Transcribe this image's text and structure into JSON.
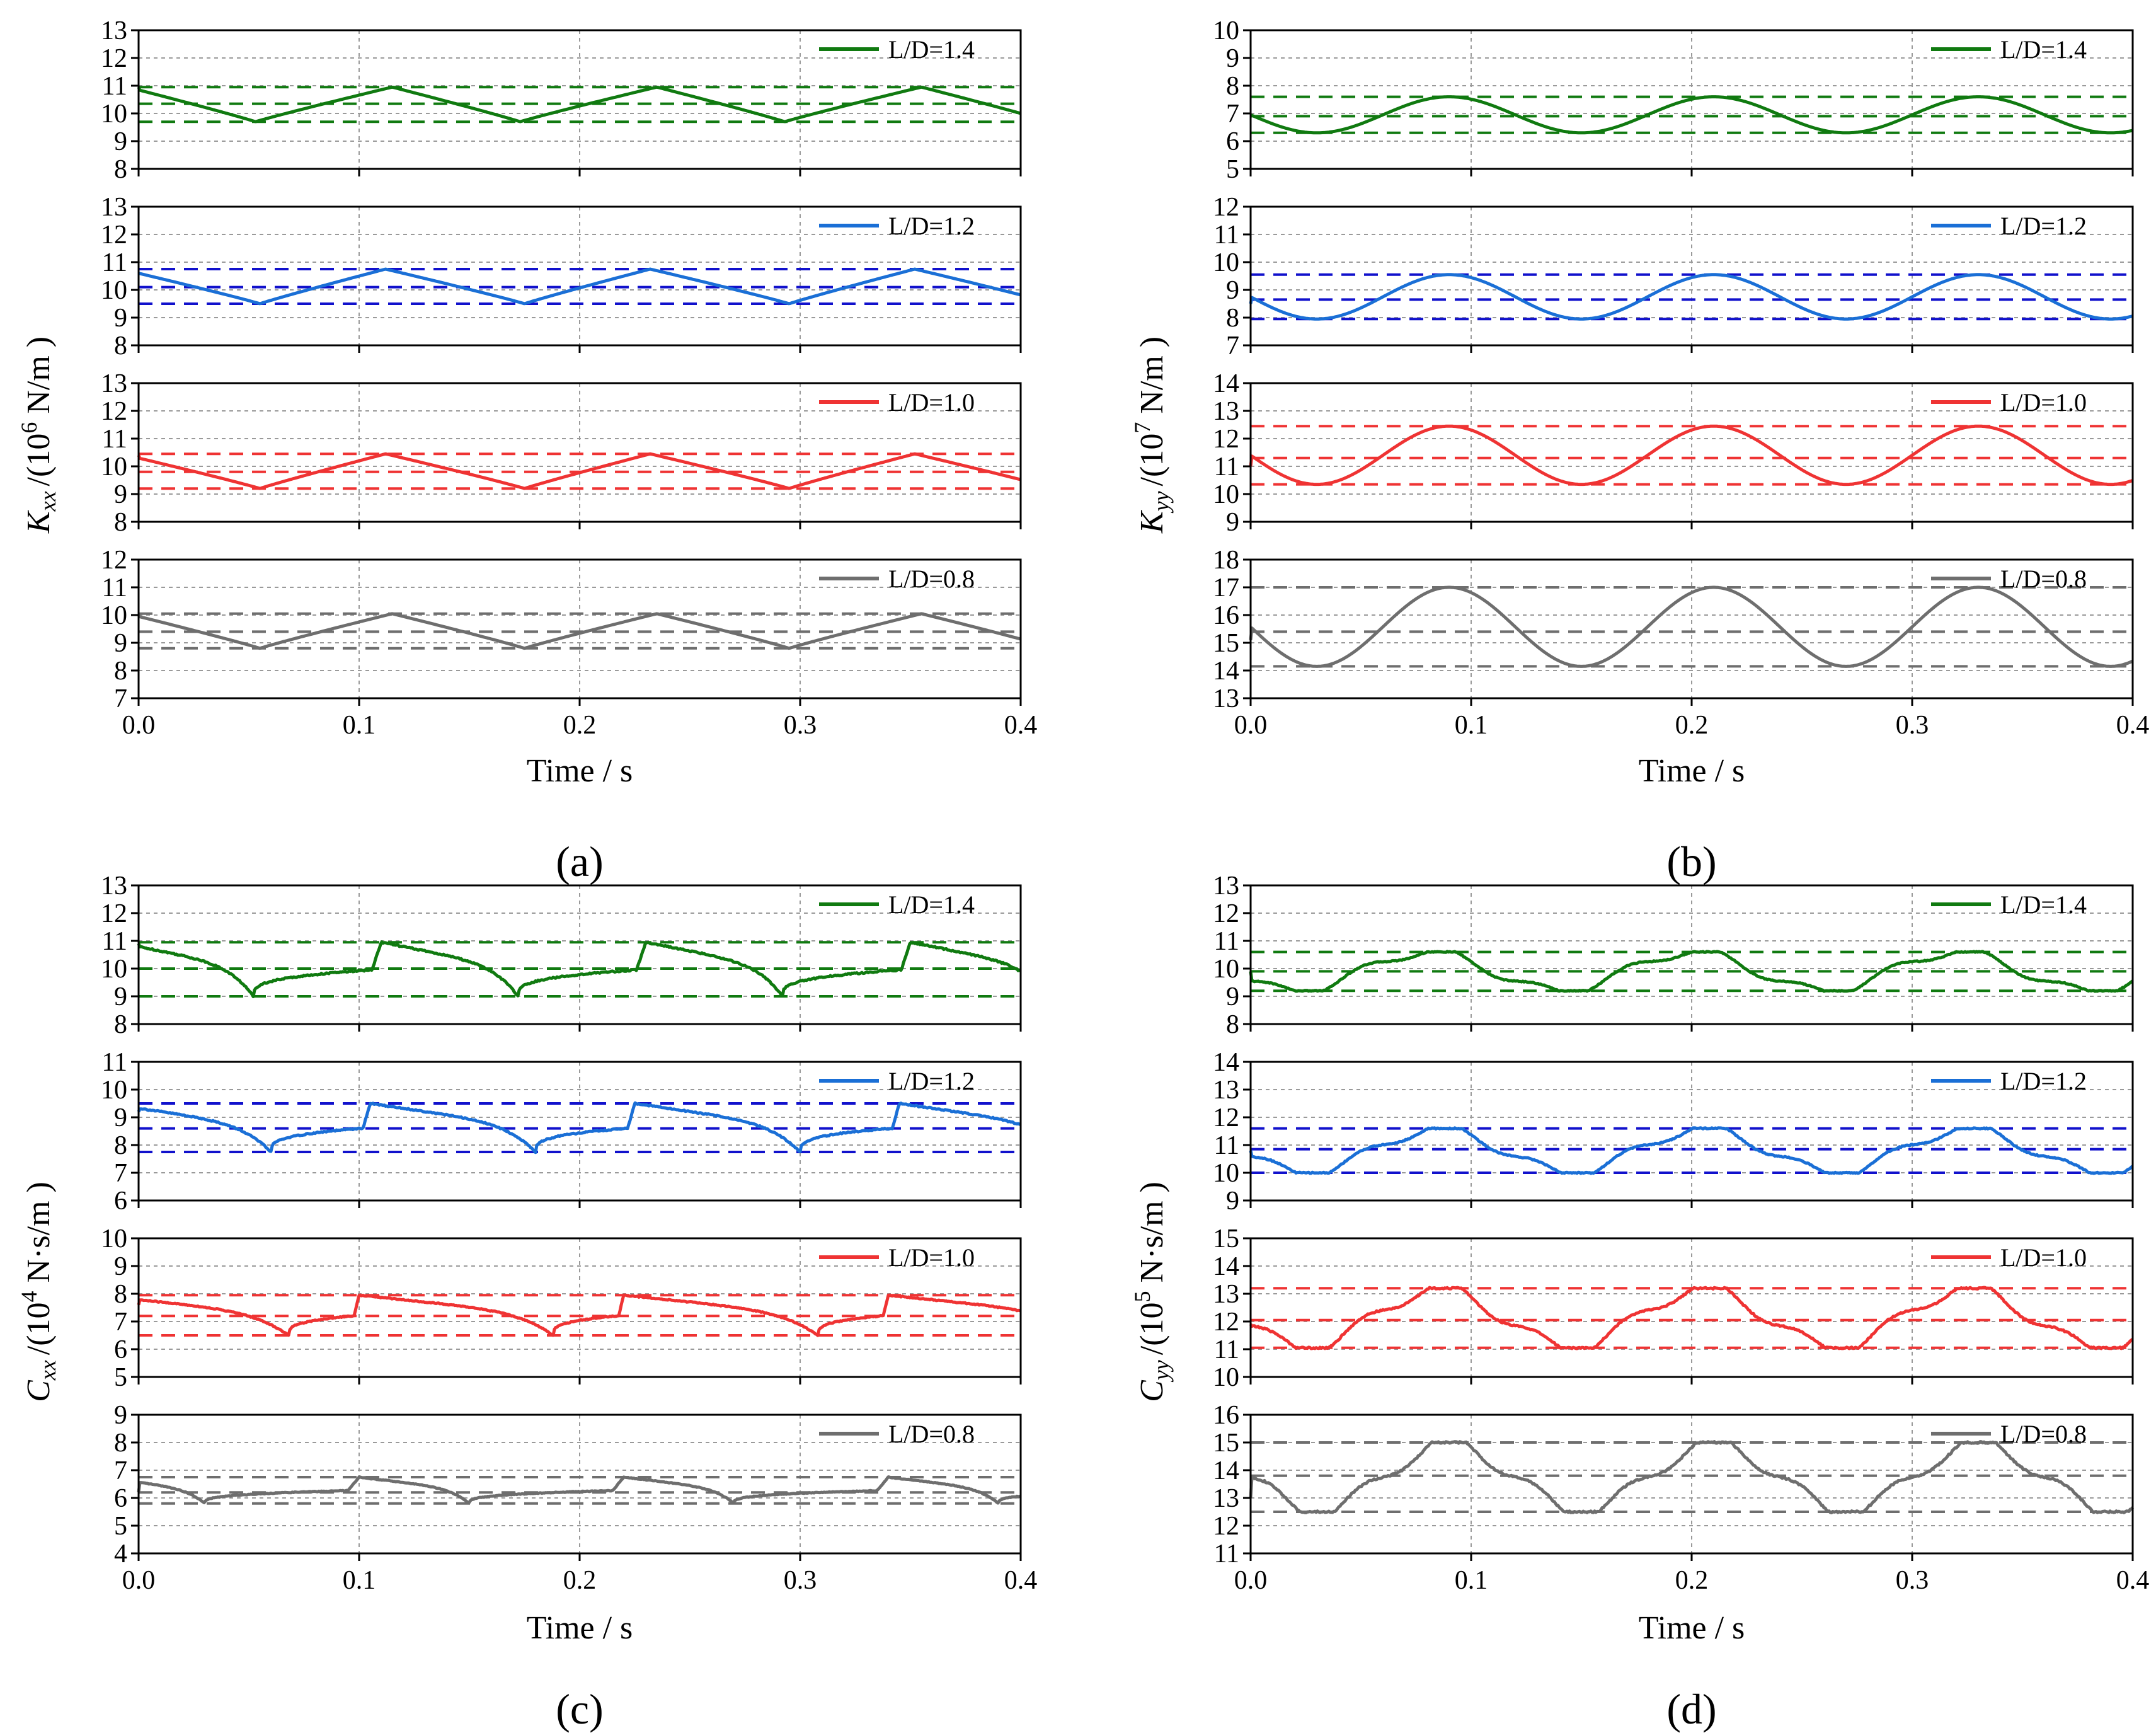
{
  "colors": {
    "green": "#107a10",
    "blue": "#1a6fd6",
    "red": "#ef3333",
    "gray": "#6e6e6e",
    "blue_dash": "#1111cc"
  },
  "chart_data": [
    {
      "type": "line",
      "panel_label": "(a)",
      "xlabel": "Time / s",
      "ylabel": {
        "main": "K",
        "sub": "xx",
        "unit_pre": "/(10",
        "exp": "6",
        "unit_post": " N/m )"
      },
      "xlim": [
        0,
        0.4
      ],
      "xticks": [
        "0.0",
        "0.1",
        "0.2",
        "0.3",
        "0.4"
      ],
      "grid": true,
      "subplots": [
        {
          "legend": "L/D=1.4",
          "color": "green",
          "ylim": [
            8,
            13
          ],
          "yticks": [
            "8",
            "9",
            "10",
            "11",
            "12",
            "13"
          ],
          "period": 0.12,
          "shape": "triangle",
          "min": 9.7,
          "max": 10.95,
          "mean": 10.35,
          "min_t": 0.053,
          "max_t": 0.115,
          "start": 10.95
        },
        {
          "legend": "L/D=1.2",
          "color": "blue",
          "ylim": [
            8,
            13
          ],
          "yticks": [
            "8",
            "9",
            "10",
            "11",
            "12",
            "13"
          ],
          "period": 0.12,
          "shape": "triangle",
          "min": 9.5,
          "max": 10.75,
          "mean": 10.1,
          "min_t": 0.055,
          "max_t": 0.112,
          "start": 10.6,
          "dash_color": "blue_dash"
        },
        {
          "legend": "L/D=1.0",
          "color": "red",
          "ylim": [
            8,
            13
          ],
          "yticks": [
            "8",
            "9",
            "10",
            "11",
            "12",
            "13"
          ],
          "period": 0.12,
          "shape": "triangle",
          "min": 9.2,
          "max": 10.45,
          "mean": 9.8,
          "min_t": 0.055,
          "max_t": 0.112,
          "start": 10.4
        },
        {
          "legend": "L/D=0.8",
          "color": "gray",
          "ylim": [
            7,
            12
          ],
          "yticks": [
            "7",
            "8",
            "9",
            "10",
            "11",
            "12"
          ],
          "period": 0.12,
          "shape": "triangle",
          "min": 8.8,
          "max": 10.05,
          "mean": 9.4,
          "min_t": 0.055,
          "max_t": 0.115,
          "start": 10.0
        }
      ]
    },
    {
      "type": "line",
      "panel_label": "(b)",
      "xlabel": "Time / s",
      "ylabel": {
        "main": "K",
        "sub": "yy",
        "unit_pre": "/(10",
        "exp": "7",
        "unit_post": " N/m )"
      },
      "xlim": [
        0,
        0.4
      ],
      "xticks": [
        "0.0",
        "0.1",
        "0.2",
        "0.3",
        "0.4"
      ],
      "grid": true,
      "subplots": [
        {
          "legend": "L/D=1.4",
          "color": "green",
          "ylim": [
            5,
            10
          ],
          "yticks": [
            "5",
            "6",
            "7",
            "8",
            "9",
            "10"
          ],
          "period": 0.12,
          "shape": "sine",
          "min": 6.3,
          "max": 7.6,
          "mean": 6.9,
          "min_t": 0.03,
          "max_t": 0.09,
          "start": 6.9
        },
        {
          "legend": "L/D=1.2",
          "color": "blue",
          "ylim": [
            7,
            12
          ],
          "yticks": [
            "7",
            "8",
            "9",
            "10",
            "11",
            "12"
          ],
          "period": 0.12,
          "shape": "sine",
          "min": 7.95,
          "max": 9.55,
          "mean": 8.65,
          "min_t": 0.03,
          "max_t": 0.09,
          "start": 8.5,
          "dash_color": "blue_dash"
        },
        {
          "legend": "L/D=1.0",
          "color": "red",
          "ylim": [
            9,
            14
          ],
          "yticks": [
            "9",
            "10",
            "11",
            "12",
            "13",
            "14"
          ],
          "period": 0.12,
          "shape": "sine",
          "min": 10.35,
          "max": 12.45,
          "mean": 11.3,
          "min_t": 0.03,
          "max_t": 0.09,
          "start": 11.0
        },
        {
          "legend": "L/D=0.8",
          "color": "gray",
          "ylim": [
            13,
            18
          ],
          "yticks": [
            "13",
            "14",
            "15",
            "16",
            "17",
            "18"
          ],
          "period": 0.12,
          "shape": "sine",
          "min": 14.15,
          "max": 17.0,
          "mean": 15.4,
          "min_t": 0.03,
          "max_t": 0.09,
          "start": 15.1
        }
      ]
    },
    {
      "type": "line",
      "panel_label": "(c)",
      "xlabel": "Time / s",
      "ylabel": {
        "main": "C",
        "sub": "xx",
        "unit_pre": "/(10",
        "exp": "4",
        "unit_post": " N·s/m )"
      },
      "xlim": [
        0,
        0.4
      ],
      "xticks": [
        "0.0",
        "0.1",
        "0.2",
        "0.3",
        "0.4"
      ],
      "grid": true,
      "subplots": [
        {
          "legend": "L/D=1.4",
          "color": "green",
          "ylim": [
            8,
            13
          ],
          "yticks": [
            "8",
            "9",
            "10",
            "11",
            "12",
            "13"
          ],
          "period": 0.12,
          "shape": "jump",
          "min": 9.0,
          "max": 10.95,
          "mean": 10.0,
          "min_t": 0.052,
          "max_t": 0.11,
          "start": 10.9
        },
        {
          "legend": "L/D=1.2",
          "color": "blue",
          "ylim": [
            6,
            11
          ],
          "yticks": [
            "6",
            "7",
            "8",
            "9",
            "10",
            "11"
          ],
          "period": 0.12,
          "shape": "jump",
          "min": 7.75,
          "max": 9.5,
          "mean": 8.6,
          "min_t": 0.06,
          "max_t": 0.105,
          "start": 9.2,
          "dash_color": "blue_dash"
        },
        {
          "legend": "L/D=1.0",
          "color": "red",
          "ylim": [
            5,
            10
          ],
          "yticks": [
            "5",
            "6",
            "7",
            "8",
            "9",
            "10"
          ],
          "period": 0.12,
          "shape": "jump",
          "min": 6.5,
          "max": 7.95,
          "mean": 7.2,
          "min_t": 0.068,
          "max_t": 0.1,
          "start": 7.6
        },
        {
          "legend": "L/D=0.8",
          "color": "gray",
          "ylim": [
            4,
            9
          ],
          "yticks": [
            "4",
            "5",
            "6",
            "7",
            "8",
            "9"
          ],
          "period": 0.12,
          "shape": "jump",
          "min": 5.8,
          "max": 6.75,
          "mean": 6.2,
          "min_t": 0.03,
          "max_t": 0.1,
          "start": 6.2
        }
      ]
    },
    {
      "type": "line",
      "panel_label": "(d)",
      "xlabel": "Time / s",
      "ylabel": {
        "main": "C",
        "sub": "yy",
        "unit_pre": "/(10",
        "exp": "5",
        "unit_post": " N·s/m )"
      },
      "xlim": [
        0,
        0.4
      ],
      "xticks": [
        "0.0",
        "0.1",
        "0.2",
        "0.3",
        "0.4"
      ],
      "grid": true,
      "subplots": [
        {
          "legend": "L/D=1.4",
          "color": "green",
          "ylim": [
            8,
            13
          ],
          "yticks": [
            "8",
            "9",
            "10",
            "11",
            "12",
            "13"
          ],
          "period": 0.12,
          "shape": "wavy",
          "min": 9.2,
          "max": 10.6,
          "mean": 9.9,
          "min_t": 0.02,
          "max_t": 0.09,
          "start": 9.9
        },
        {
          "legend": "L/D=1.2",
          "color": "blue",
          "ylim": [
            9,
            14
          ],
          "yticks": [
            "9",
            "10",
            "11",
            "12",
            "13",
            "14"
          ],
          "period": 0.12,
          "shape": "wavy",
          "min": 10.0,
          "max": 11.6,
          "mean": 10.85,
          "min_t": 0.025,
          "max_t": 0.09,
          "start": 10.8,
          "dash_color": "blue_dash"
        },
        {
          "legend": "L/D=1.0",
          "color": "red",
          "ylim": [
            10,
            15
          ],
          "yticks": [
            "10",
            "11",
            "12",
            "13",
            "14",
            "15"
          ],
          "period": 0.12,
          "shape": "wavy",
          "min": 11.05,
          "max": 13.2,
          "mean": 12.05,
          "min_t": 0.025,
          "max_t": 0.095,
          "start": 11.9
        },
        {
          "legend": "L/D=0.8",
          "color": "gray",
          "ylim": [
            11,
            16
          ],
          "yticks": [
            "11",
            "12",
            "13",
            "14",
            "15",
            "16"
          ],
          "period": 0.12,
          "shape": "wavy",
          "min": 12.5,
          "max": 15.0,
          "mean": 13.8,
          "min_t": 0.03,
          "max_t": 0.09,
          "start": 13.0
        }
      ]
    }
  ]
}
